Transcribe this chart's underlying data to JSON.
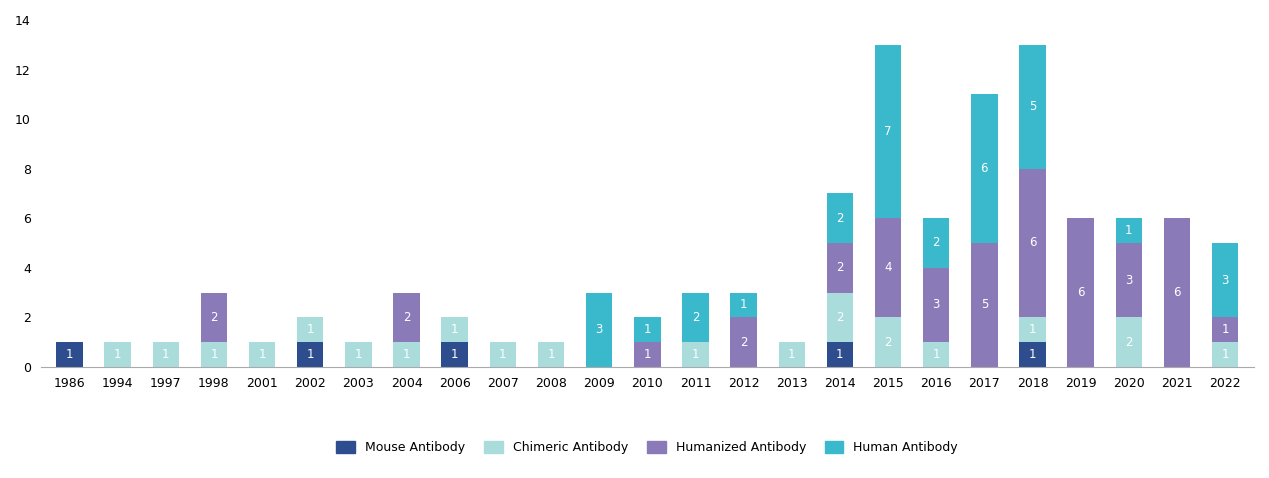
{
  "years": [
    "1986",
    "1994",
    "1997",
    "1998",
    "2001",
    "2002",
    "2003",
    "2004",
    "2006",
    "2007",
    "2008",
    "2009",
    "2010",
    "2011",
    "2012",
    "2013",
    "2014",
    "2015",
    "2016",
    "2017",
    "2018",
    "2019",
    "2020",
    "2021",
    "2022"
  ],
  "mouse": [
    1,
    0,
    0,
    0,
    0,
    1,
    0,
    0,
    1,
    0,
    0,
    0,
    0,
    0,
    0,
    0,
    1,
    0,
    0,
    0,
    1,
    0,
    0,
    0,
    0
  ],
  "chimeric": [
    0,
    1,
    1,
    1,
    1,
    1,
    1,
    1,
    1,
    1,
    1,
    0,
    0,
    1,
    0,
    1,
    2,
    2,
    1,
    0,
    1,
    0,
    2,
    0,
    1
  ],
  "humanized": [
    0,
    0,
    0,
    2,
    0,
    0,
    0,
    2,
    0,
    0,
    0,
    0,
    1,
    0,
    2,
    0,
    2,
    4,
    3,
    5,
    6,
    6,
    3,
    6,
    1
  ],
  "human": [
    0,
    0,
    0,
    0,
    0,
    0,
    0,
    0,
    0,
    0,
    0,
    3,
    1,
    2,
    1,
    0,
    2,
    7,
    2,
    6,
    5,
    0,
    1,
    0,
    3
  ],
  "color_mouse": "#2e4d8f",
  "color_chimeric": "#aadcdc",
  "color_humanized": "#8b7ab8",
  "color_human": "#3ab8cc",
  "ylim": [
    0,
    14
  ],
  "yticks": [
    0,
    2,
    4,
    6,
    8,
    10,
    12,
    14
  ],
  "legend_labels": [
    "Mouse Antibody",
    "Chimeric Antibody",
    "Humanized Antibody",
    "Human Antibody"
  ],
  "label_fontsize": 8.5,
  "tick_fontsize": 9,
  "bar_width": 0.55
}
